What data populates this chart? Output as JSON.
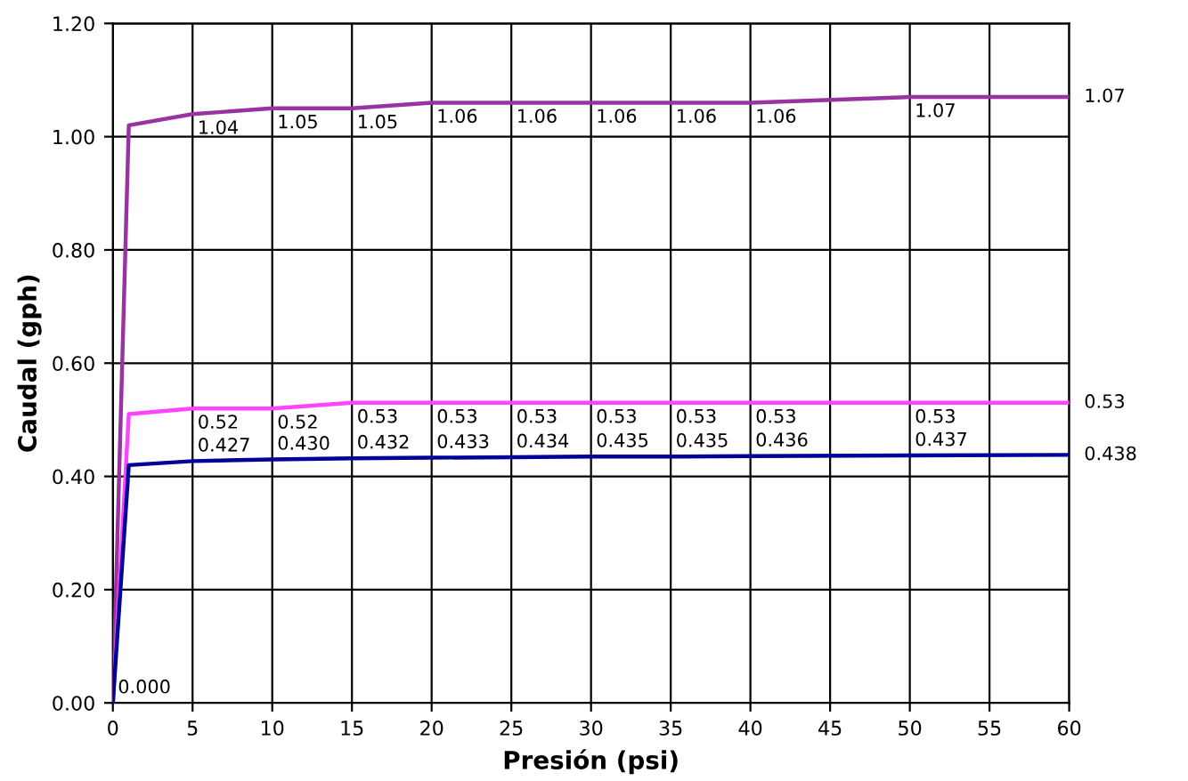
{
  "chart_data": {
    "type": "line",
    "xlabel": "Presión (psi)",
    "ylabel": "Caudal (gph)",
    "x": [
      0,
      1,
      5,
      10,
      15,
      20,
      25,
      30,
      35,
      40,
      50,
      60
    ],
    "series": [
      {
        "color": "#9933a0",
        "values": [
          0,
          1.02,
          1.04,
          1.05,
          1.05,
          1.06,
          1.06,
          1.06,
          1.06,
          1.06,
          1.07,
          1.07
        ],
        "value_labels": [
          null,
          null,
          "1.04",
          "1.05",
          "1.05",
          "1.06",
          "1.06",
          "1.06",
          "1.06",
          "1.06",
          "1.07",
          "1.07"
        ]
      },
      {
        "color": "#ff44ff",
        "values": [
          0,
          0.51,
          0.52,
          0.52,
          0.53,
          0.53,
          0.53,
          0.53,
          0.53,
          0.53,
          0.53,
          0.53
        ],
        "value_labels": [
          null,
          null,
          "0.52",
          "0.52",
          "0.53",
          "0.53",
          "0.53",
          "0.53",
          "0.53",
          "0.53",
          "0.53",
          "0.53"
        ]
      },
      {
        "color": "#000099",
        "values": [
          0,
          0.42,
          0.427,
          0.43,
          0.432,
          0.433,
          0.434,
          0.435,
          0.435,
          0.436,
          0.437,
          0.438
        ],
        "value_labels": [
          "0.000",
          null,
          "0.427",
          "0.430",
          "0.432",
          "0.433",
          "0.434",
          "0.435",
          "0.435",
          "0.436",
          "0.437",
          "0.438"
        ]
      }
    ],
    "xlim": [
      0,
      60
    ],
    "xticks": [
      0,
      5,
      10,
      15,
      20,
      25,
      30,
      35,
      40,
      45,
      50,
      55,
      60
    ],
    "ylim": [
      0,
      1.2
    ],
    "yticks": [
      {
        "value": 0,
        "label": "0.00"
      },
      {
        "value": 0.2,
        "label": "0.20"
      },
      {
        "value": 0.4,
        "label": "0.40"
      },
      {
        "value": 0.6,
        "label": "0.60"
      },
      {
        "value": 0.8,
        "label": "0.80"
      },
      {
        "value": 1.0,
        "label": "1.00"
      },
      {
        "value": 1.2,
        "label": "1.20"
      }
    ],
    "grid": true,
    "marker": "none",
    "line_style": "solid"
  }
}
